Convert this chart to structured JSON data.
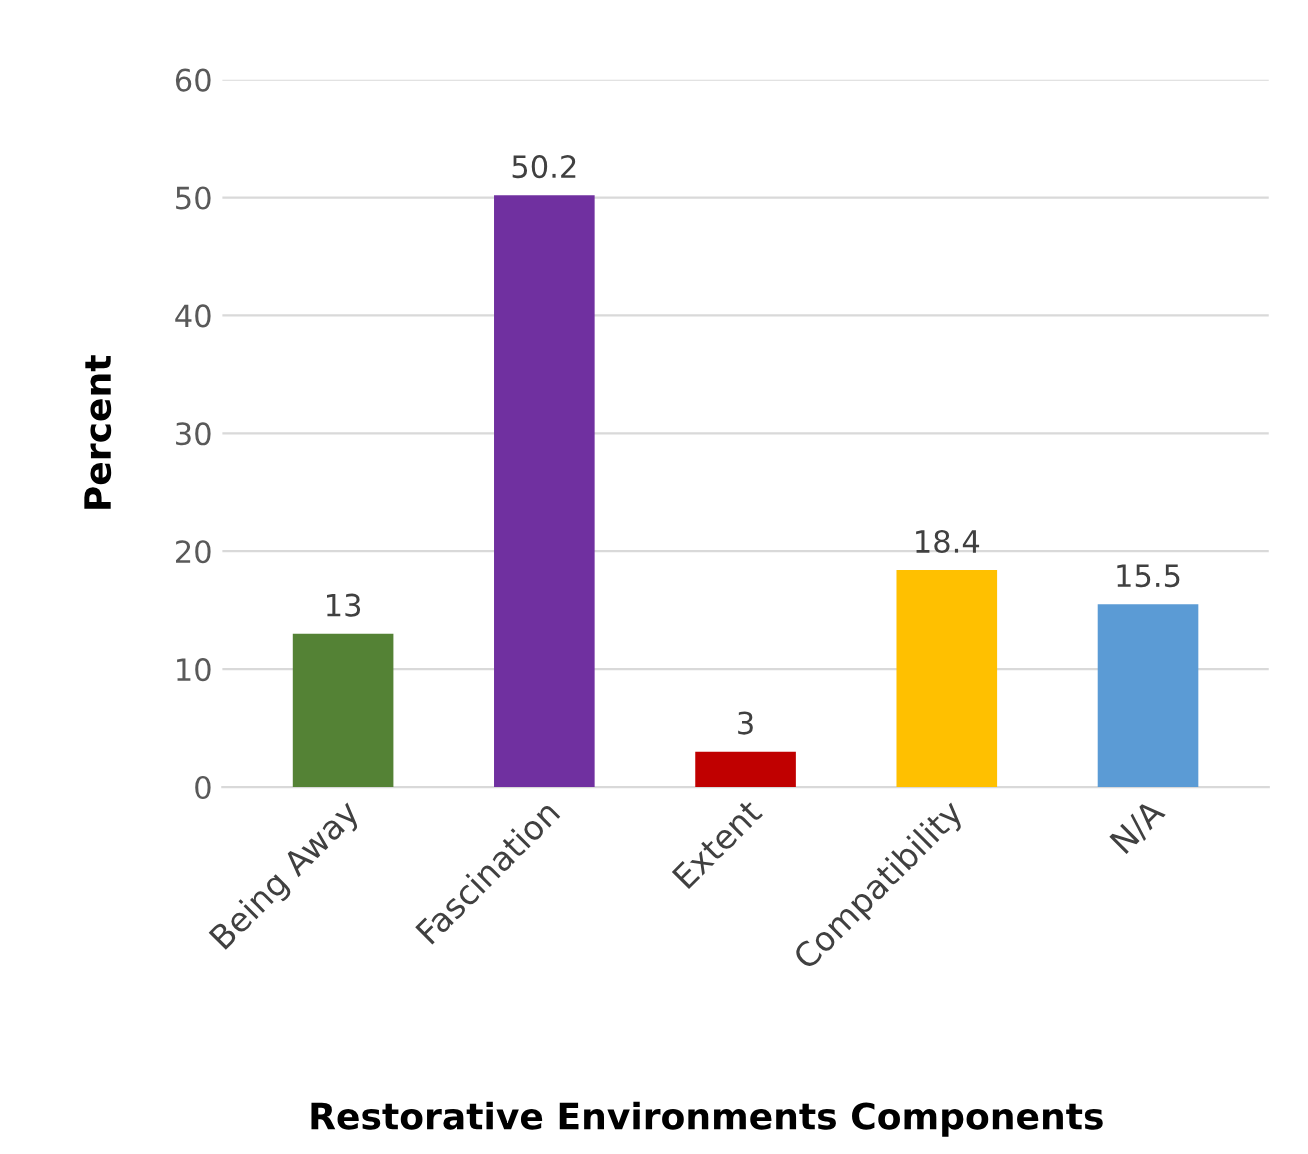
{
  "chart_data": {
    "type": "bar",
    "xlabel": "Restorative Environments Components",
    "ylabel": "Percent",
    "categories": [
      "Being Away",
      "Fascination",
      "Extent",
      "Compatibility",
      "N/A"
    ],
    "values": [
      13,
      50.2,
      3,
      18.4,
      15.5
    ],
    "colors": [
      "#548235",
      "#7030a0",
      "#c00000",
      "#ffc000",
      "#5b9bd5"
    ],
    "ylim": [
      0,
      60
    ],
    "yticks": [
      0,
      10,
      20,
      30,
      40,
      50,
      60
    ],
    "grid": "y",
    "data_labels": true,
    "legend": false
  }
}
